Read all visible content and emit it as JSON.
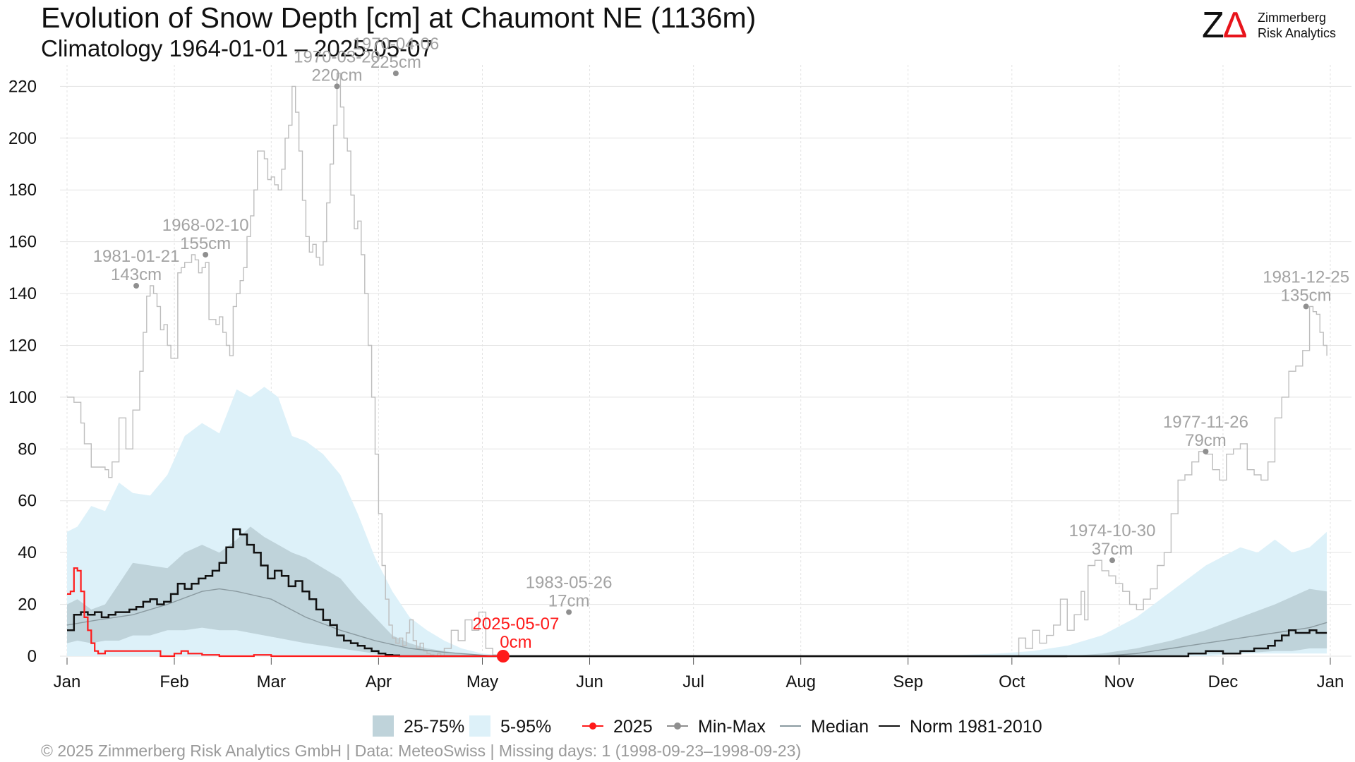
{
  "header": {
    "title": "Evolution of Snow Depth [cm] at Chaumont  NE (1136m)",
    "subtitle": "Climatology 1964-01-01 – 2025-05-07"
  },
  "logo": {
    "mark_z": "Z",
    "mark_delta": "Δ",
    "line1": "Zimmerberg",
    "line2": "Risk Analytics"
  },
  "caption": "©  2025 Zimmerberg Risk Analytics GmbH | Data: MeteoSwiss | Missing days: 1 (1998-09-23–1998-09-23)",
  "colors": {
    "band_5_95": "#ddf1f9",
    "band_25_75": "#bfd3da",
    "series_2025": "#ff1a1a",
    "min_max": "#bdbdbd",
    "median": "#8a9aa0",
    "norm": "#111111",
    "annotation_gray": "#a3a3a3",
    "annotation_red": "#ff1a1a",
    "grid": "#e3e3e3"
  },
  "chart_data": {
    "type": "line",
    "x_unit": "day of year",
    "xlim": [
      1,
      366
    ],
    "ylim": [
      0,
      225
    ],
    "yticks": [
      0,
      20,
      40,
      60,
      80,
      100,
      120,
      140,
      160,
      180,
      200,
      220
    ],
    "x_ticks": [
      {
        "label": "Jan",
        "day": 1
      },
      {
        "label": "Feb",
        "day": 32
      },
      {
        "label": "Mar",
        "day": 60
      },
      {
        "label": "Apr",
        "day": 91
      },
      {
        "label": "May",
        "day": 121
      },
      {
        "label": "Jun",
        "day": 152
      },
      {
        "label": "Jul",
        "day": 182
      },
      {
        "label": "Aug",
        "day": 213
      },
      {
        "label": "Sep",
        "day": 244
      },
      {
        "label": "Oct",
        "day": 274
      },
      {
        "label": "Nov",
        "day": 305
      },
      {
        "label": "Dec",
        "day": 335
      },
      {
        "label": "Jan",
        "day": 366
      }
    ],
    "grid": true,
    "legend_position": "bottom",
    "legend": [
      {
        "label": "25-75%",
        "kind": "band",
        "color": "#bfd3da"
      },
      {
        "label": "5-95%",
        "kind": "band",
        "color": "#ddf1f9"
      },
      {
        "label": "2025",
        "kind": "line-dot",
        "color": "#ff1a1a"
      },
      {
        "label": "Min-Max",
        "kind": "line-dot",
        "color": "#8f8f8f"
      },
      {
        "label": "Median",
        "kind": "line",
        "color": "#8a9aa0"
      },
      {
        "label": "Norm 1981-2010",
        "kind": "line",
        "color": "#111111"
      }
    ],
    "band_5_95": {
      "x": [
        1,
        4,
        8,
        12,
        16,
        20,
        25,
        30,
        35,
        40,
        45,
        50,
        54,
        58,
        62,
        66,
        70,
        75,
        80,
        85,
        90,
        95,
        100,
        105,
        110,
        115,
        121,
        126,
        129,
        250,
        270,
        280,
        290,
        300,
        310,
        320,
        330,
        340,
        345,
        350,
        355,
        360,
        365
      ],
      "lower": [
        0,
        0,
        0,
        0,
        0,
        0,
        0,
        0,
        0,
        0,
        0,
        0,
        0,
        0,
        0,
        0,
        0,
        0,
        0,
        0,
        0,
        0,
        0,
        0,
        0,
        0,
        0,
        0,
        0,
        0,
        0,
        0,
        0,
        0,
        0,
        0,
        0,
        1,
        1,
        1,
        1,
        1,
        1
      ],
      "upper": [
        48,
        50,
        58,
        56,
        67,
        63,
        62,
        70,
        85,
        90,
        86,
        103,
        100,
        104,
        100,
        85,
        83,
        78,
        70,
        55,
        38,
        25,
        15,
        10,
        6,
        3,
        1,
        0.5,
        0,
        0,
        1,
        2,
        4,
        8,
        15,
        25,
        35,
        42,
        40,
        45,
        40,
        42,
        48
      ]
    },
    "band_25_75": {
      "x": [
        1,
        4,
        8,
        12,
        16,
        20,
        25,
        30,
        35,
        40,
        45,
        50,
        54,
        58,
        62,
        66,
        70,
        75,
        80,
        85,
        90,
        95,
        100,
        105,
        110,
        115,
        121,
        126,
        129,
        290,
        300,
        310,
        320,
        330,
        340,
        350,
        355,
        360,
        365
      ],
      "lower": [
        5,
        6,
        5,
        6,
        6,
        8,
        8,
        10,
        10,
        11,
        10,
        10,
        9,
        8,
        7,
        6,
        5,
        4,
        3,
        2,
        1,
        0.5,
        0,
        0,
        0,
        0,
        0,
        0,
        0,
        0,
        0,
        0,
        0,
        1,
        1,
        2,
        2,
        3,
        3
      ],
      "upper": [
        20,
        22,
        18,
        20,
        28,
        36,
        35,
        34,
        40,
        43,
        40,
        45,
        50,
        46,
        43,
        40,
        38,
        34,
        30,
        22,
        15,
        8,
        5,
        3,
        2,
        1,
        0.5,
        0,
        0,
        0,
        1,
        3,
        6,
        10,
        15,
        20,
        23,
        26,
        25
      ]
    },
    "min_max": {
      "x": [
        1,
        3,
        5,
        6,
        8,
        10,
        12,
        13,
        14,
        16,
        18,
        19,
        20,
        22,
        23,
        24,
        25,
        26,
        27,
        28,
        29,
        30,
        31,
        32,
        33,
        34,
        35,
        37,
        38,
        39,
        40,
        41,
        42,
        44,
        45,
        46,
        47,
        48,
        49,
        50,
        51,
        52,
        53,
        54,
        55,
        56,
        57,
        58,
        59,
        60,
        61,
        62,
        63,
        64,
        65,
        66,
        67,
        68,
        69,
        70,
        71,
        72,
        73,
        74,
        75,
        76,
        77,
        78,
        79,
        80,
        81,
        82,
        83,
        84,
        85,
        86,
        87,
        88,
        89,
        90,
        91,
        92,
        93,
        94,
        95,
        96,
        97,
        98,
        99,
        100,
        101,
        102,
        103,
        104,
        105,
        106,
        107,
        108,
        109,
        110,
        112,
        114,
        116,
        118,
        120,
        122,
        124,
        126,
        128,
        129,
        131,
        134,
        137,
        140,
        143,
        145,
        147,
        149,
        151,
        153,
        274,
        276,
        278,
        280,
        282,
        284,
        286,
        288,
        290,
        292,
        294,
        295,
        296,
        298,
        300,
        302,
        304,
        306,
        308,
        310,
        312,
        314,
        316,
        318,
        320,
        322,
        324,
        326,
        328,
        330,
        332,
        334,
        336,
        338,
        340,
        342,
        344,
        346,
        348,
        350,
        352,
        354,
        356,
        358,
        360,
        361,
        362,
        363,
        364,
        365
      ],
      "y": [
        100,
        98,
        90,
        82,
        73,
        73,
        72,
        69,
        75,
        92,
        80,
        80,
        95,
        110,
        125,
        139,
        143,
        140,
        135,
        126,
        128,
        120,
        115,
        115,
        148,
        150,
        152,
        155,
        153,
        148,
        150,
        152,
        130,
        128,
        131,
        125,
        120,
        116,
        135,
        140,
        145,
        150,
        162,
        170,
        180,
        195,
        195,
        192,
        184,
        185,
        182,
        180,
        188,
        200,
        205,
        220,
        210,
        195,
        176,
        162,
        156,
        159,
        154,
        151,
        160,
        175,
        190,
        205,
        225,
        212,
        200,
        195,
        178,
        165,
        168,
        155,
        140,
        120,
        100,
        78,
        55,
        35,
        22,
        12,
        7,
        5,
        7,
        4,
        9,
        14,
        6,
        3,
        5,
        2,
        1,
        0.5,
        0,
        1,
        0,
        3,
        10,
        6,
        14,
        10,
        17,
        3,
        0.5,
        0,
        0,
        0,
        0,
        0,
        0,
        0,
        0,
        0,
        0,
        0,
        0,
        0,
        0,
        7,
        3,
        10,
        5,
        8,
        12,
        22,
        10,
        16,
        25,
        14,
        35,
        37,
        33,
        31,
        28,
        25,
        20,
        18,
        22,
        26,
        35,
        40,
        55,
        68,
        70,
        75,
        79,
        78,
        72,
        68,
        78,
        80,
        82,
        72,
        70,
        68,
        75,
        92,
        100,
        110,
        112,
        118,
        135,
        133,
        132,
        125,
        120,
        116
      ]
    },
    "median": {
      "x": [
        1,
        10,
        20,
        30,
        40,
        45,
        50,
        60,
        70,
        80,
        90,
        100,
        110,
        120,
        125,
        290,
        300,
        310,
        320,
        330,
        340,
        350,
        360,
        365
      ],
      "y": [
        12,
        14,
        16,
        20,
        25,
        26,
        25,
        22,
        15,
        10,
        6,
        3,
        1.5,
        0.5,
        0,
        0,
        0,
        1,
        3,
        5,
        7,
        9,
        11,
        13
      ]
    },
    "norm_1981_2010": {
      "x": [
        1,
        3,
        5,
        7,
        9,
        11,
        13,
        15,
        17,
        19,
        21,
        23,
        25,
        27,
        29,
        31,
        33,
        35,
        37,
        39,
        41,
        43,
        45,
        47,
        49,
        51,
        53,
        55,
        57,
        59,
        61,
        63,
        65,
        67,
        69,
        71,
        73,
        75,
        77,
        79,
        81,
        83,
        85,
        87,
        89,
        91,
        93,
        95,
        97,
        99,
        101,
        103,
        320,
        325,
        330,
        335,
        340,
        344,
        348,
        350,
        352,
        354,
        356,
        358,
        360,
        362,
        365
      ],
      "y": [
        10,
        16,
        17,
        16,
        17,
        15,
        16,
        17,
        17,
        18,
        19,
        21,
        22,
        20,
        21,
        24,
        28,
        26,
        28,
        30,
        31,
        33,
        36,
        42,
        49,
        47,
        43,
        40,
        35,
        30,
        33,
        31,
        27,
        29,
        25,
        22,
        18,
        14,
        12,
        8,
        6,
        5,
        4,
        3,
        2,
        1,
        0.5,
        0.3,
        0,
        0,
        0,
        0,
        0,
        1,
        2,
        1,
        2,
        3,
        4,
        6,
        8,
        10,
        9,
        9,
        10,
        9,
        9
      ]
    },
    "series_2025": {
      "name": "2025",
      "x": [
        1,
        2,
        3,
        4,
        5,
        6,
        7,
        8,
        9,
        10,
        12,
        14,
        16,
        20,
        24,
        28,
        32,
        34,
        36,
        40,
        45,
        50,
        55,
        60,
        70,
        80,
        90,
        100,
        110,
        120,
        127
      ],
      "y": [
        24,
        25,
        34,
        33,
        25,
        15,
        10,
        5,
        2,
        1,
        2,
        2,
        2,
        2,
        2,
        0,
        1,
        2,
        1,
        0.5,
        0,
        0,
        0.5,
        0,
        0,
        0,
        0,
        0,
        0,
        0,
        0
      ]
    },
    "current_point": {
      "x": 127,
      "y": 0
    },
    "annotations": [
      {
        "label": "1981-01-21",
        "value": "143cm",
        "x": 21,
        "y": 143,
        "color": "gray"
      },
      {
        "label": "1968-02-10",
        "value": "155cm",
        "x": 41,
        "y": 155,
        "color": "gray"
      },
      {
        "label": "1970-03-20",
        "value": "220cm",
        "x": 79,
        "y": 220,
        "color": "gray"
      },
      {
        "label": "1970-04-06",
        "value": "225cm",
        "x": 96,
        "y": 225,
        "color": "gray"
      },
      {
        "label": "1983-05-26",
        "value": "17cm",
        "x": 146,
        "y": 17,
        "color": "gray"
      },
      {
        "label": "2025-05-07",
        "value": "0cm",
        "x": 127,
        "y": 0,
        "color": "red"
      },
      {
        "label": "1974-10-30",
        "value": "37cm",
        "x": 303,
        "y": 37,
        "color": "gray"
      },
      {
        "label": "1977-11-26",
        "value": "79cm",
        "x": 330,
        "y": 79,
        "color": "gray"
      },
      {
        "label": "1981-12-25",
        "value": "135cm",
        "x": 359,
        "y": 135,
        "color": "gray"
      }
    ]
  }
}
